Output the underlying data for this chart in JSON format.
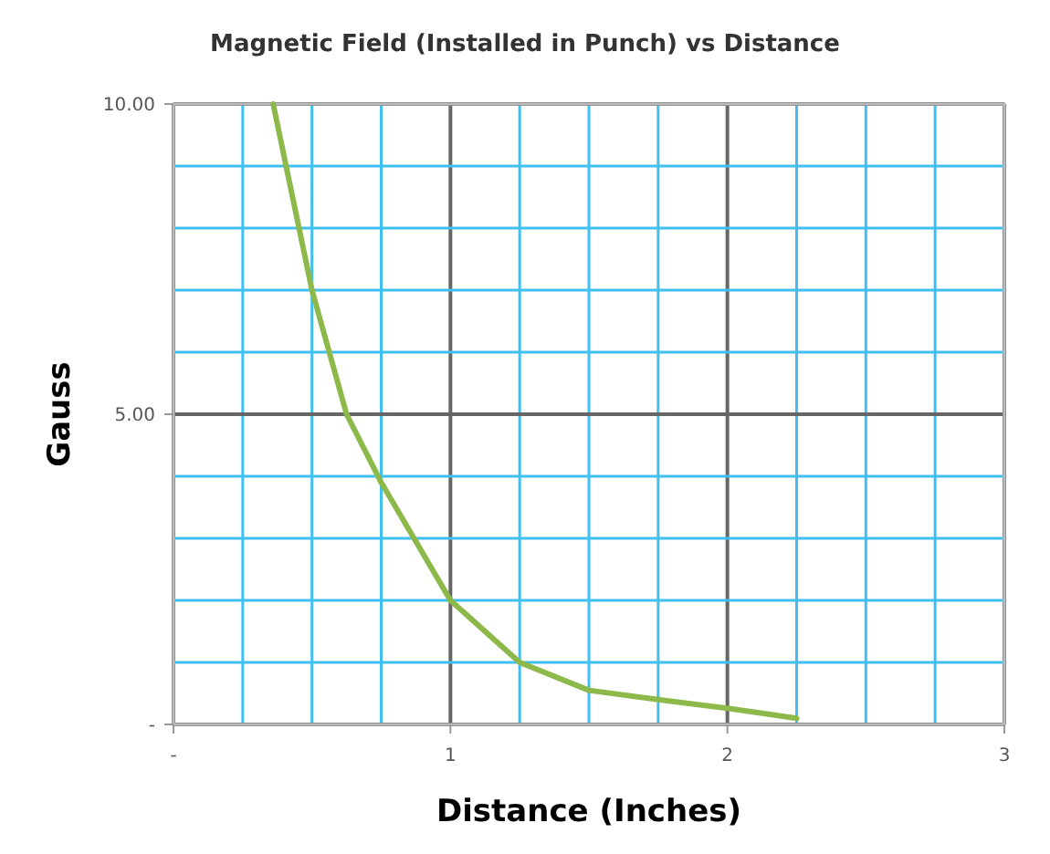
{
  "chart_data": {
    "type": "line",
    "title": "Magnetic Field (Installed in Punch) vs Distance",
    "xlabel": "Distance (Inches)",
    "ylabel": "Gauss",
    "x": [
      0.36,
      0.5,
      0.625,
      0.75,
      1,
      1.25,
      1.5,
      1.75,
      2,
      2.25
    ],
    "series": [
      {
        "color": "#8db84a",
        "values": [
          10,
          7,
          5,
          3.9,
          2,
          1,
          0.55,
          0.4,
          0.26,
          0.1
        ]
      }
    ],
    "xlim": [
      0,
      3
    ],
    "xticks": [
      {
        "value": 0,
        "label": "-"
      },
      {
        "value": 0.25,
        "label": null
      },
      {
        "value": 0.5,
        "label": null
      },
      {
        "value": 0.75,
        "label": null
      },
      1,
      {
        "value": 1.25,
        "label": null
      },
      {
        "value": 1.5,
        "label": null
      },
      {
        "value": 1.75,
        "label": null
      },
      2,
      {
        "value": 2.25,
        "label": null
      },
      {
        "value": 2.5,
        "label": null
      },
      {
        "value": 2.75,
        "label": null
      },
      3
    ],
    "ylim": [
      0,
      10
    ],
    "yticks": [
      {
        "value": 0,
        "label": "-"
      },
      {
        "value": 1,
        "label": null
      },
      {
        "value": 2,
        "label": null
      },
      {
        "value": 3,
        "label": null
      },
      {
        "value": 4,
        "label": null
      },
      {
        "value": 5,
        "label": "5.00"
      },
      {
        "value": 6,
        "label": null
      },
      {
        "value": 7,
        "label": null
      },
      {
        "value": 8,
        "label": null
      },
      {
        "value": 9,
        "label": null
      },
      {
        "value": 10,
        "label": "10.00"
      }
    ],
    "grid": true,
    "marker": "none",
    "line_style": "solid"
  }
}
